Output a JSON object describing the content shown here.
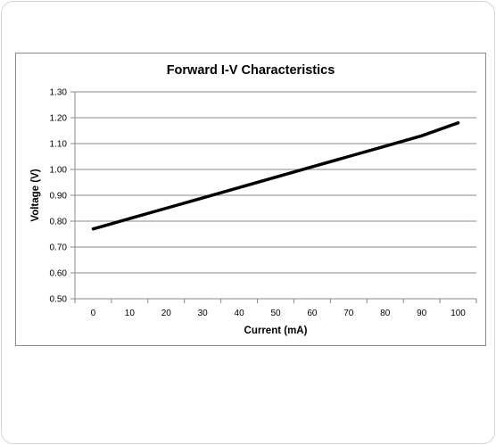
{
  "chart_data": {
    "type": "line",
    "title": "Forward I-V Characteristics",
    "xlabel": "Current (mA)",
    "ylabel": "Voltage (V)",
    "x_ticks": [
      "0",
      "10",
      "20",
      "30",
      "40",
      "50",
      "60",
      "70",
      "80",
      "90",
      "100"
    ],
    "y_ticks": [
      "0.50",
      "0.60",
      "0.70",
      "0.80",
      "0.90",
      "1.00",
      "1.10",
      "1.20",
      "1.30"
    ],
    "xlim": [
      0,
      100
    ],
    "ylim": [
      0.5,
      1.3
    ],
    "grid": true,
    "legend": "none",
    "series": [
      {
        "color": "#000000",
        "x": [
          0,
          10,
          20,
          30,
          40,
          50,
          60,
          70,
          80,
          90,
          100
        ],
        "y": [
          0.77,
          0.81,
          0.85,
          0.89,
          0.93,
          0.97,
          1.01,
          1.05,
          1.09,
          1.13,
          1.18
        ]
      }
    ]
  }
}
